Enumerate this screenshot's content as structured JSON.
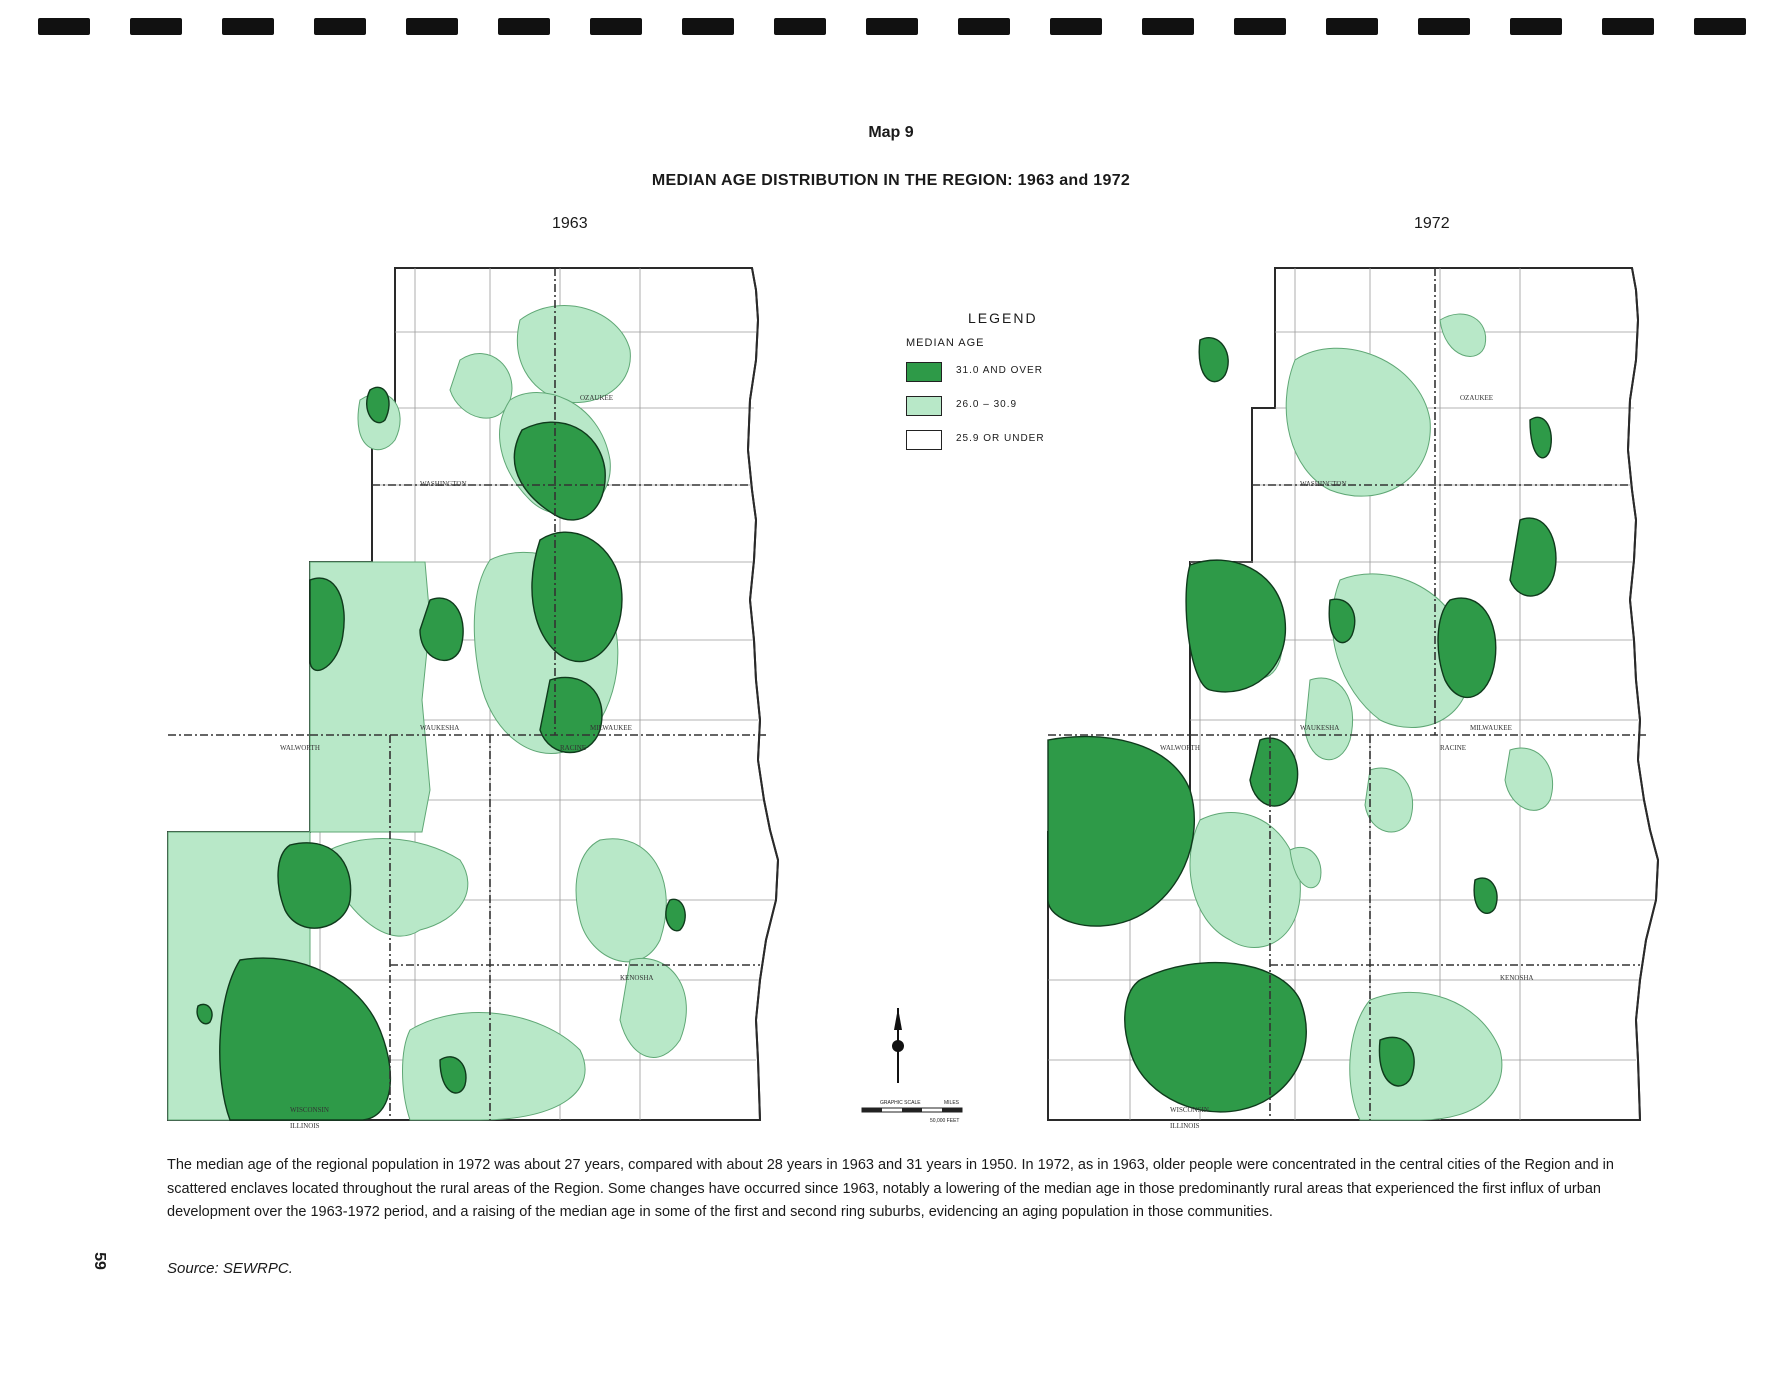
{
  "header": {
    "map_number": "Map 9",
    "title": "MEDIAN AGE DISTRIBUTION IN THE REGION: 1963 and 1972"
  },
  "maps": [
    {
      "year": "1963"
    },
    {
      "year": "1972"
    }
  ],
  "legend": {
    "title": "LEGEND",
    "subtitle": "MEDIAN AGE",
    "items": [
      {
        "label": "31.0 AND OVER",
        "color": "#2e9a48"
      },
      {
        "label": "26.0 – 30.9",
        "color": "#b8e8c8"
      },
      {
        "label": "25.9 OR UNDER",
        "color": "#ffffff"
      }
    ]
  },
  "county_labels": {
    "washington": "WASHINGTON",
    "ozaukee": "OZAUKEE",
    "waukesha": "WAUKESHA",
    "milwaukee": "MILWAUKEE",
    "walworth": "WALWORTH",
    "racine": "RACINE",
    "kenosha": "KENOSHA",
    "wisconsin": "WISCONSIN",
    "illinois": "ILLINOIS"
  },
  "scale": {
    "label": "GRAPHIC SCALE",
    "units": "MILES",
    "feet": "50,000 FEET"
  },
  "caption": "The median age of the regional population in 1972 was about 27 years, compared with about 28 years in 1963 and 31 years in 1950. In 1972, as in 1963, older people were concentrated in the central cities of the Region and in scattered enclaves located throughout  the rural areas of the Region. Some changes have occurred since 1963, notably a lowering of the median age in those predominantly rural areas that experienced the first influx of urban development over the 1963-1972 period, and a raising of the median age in some of the first and second ring suburbs, evidencing an aging population in those communities.",
  "source": "Source:  SEWRPC.",
  "page_number": "59"
}
